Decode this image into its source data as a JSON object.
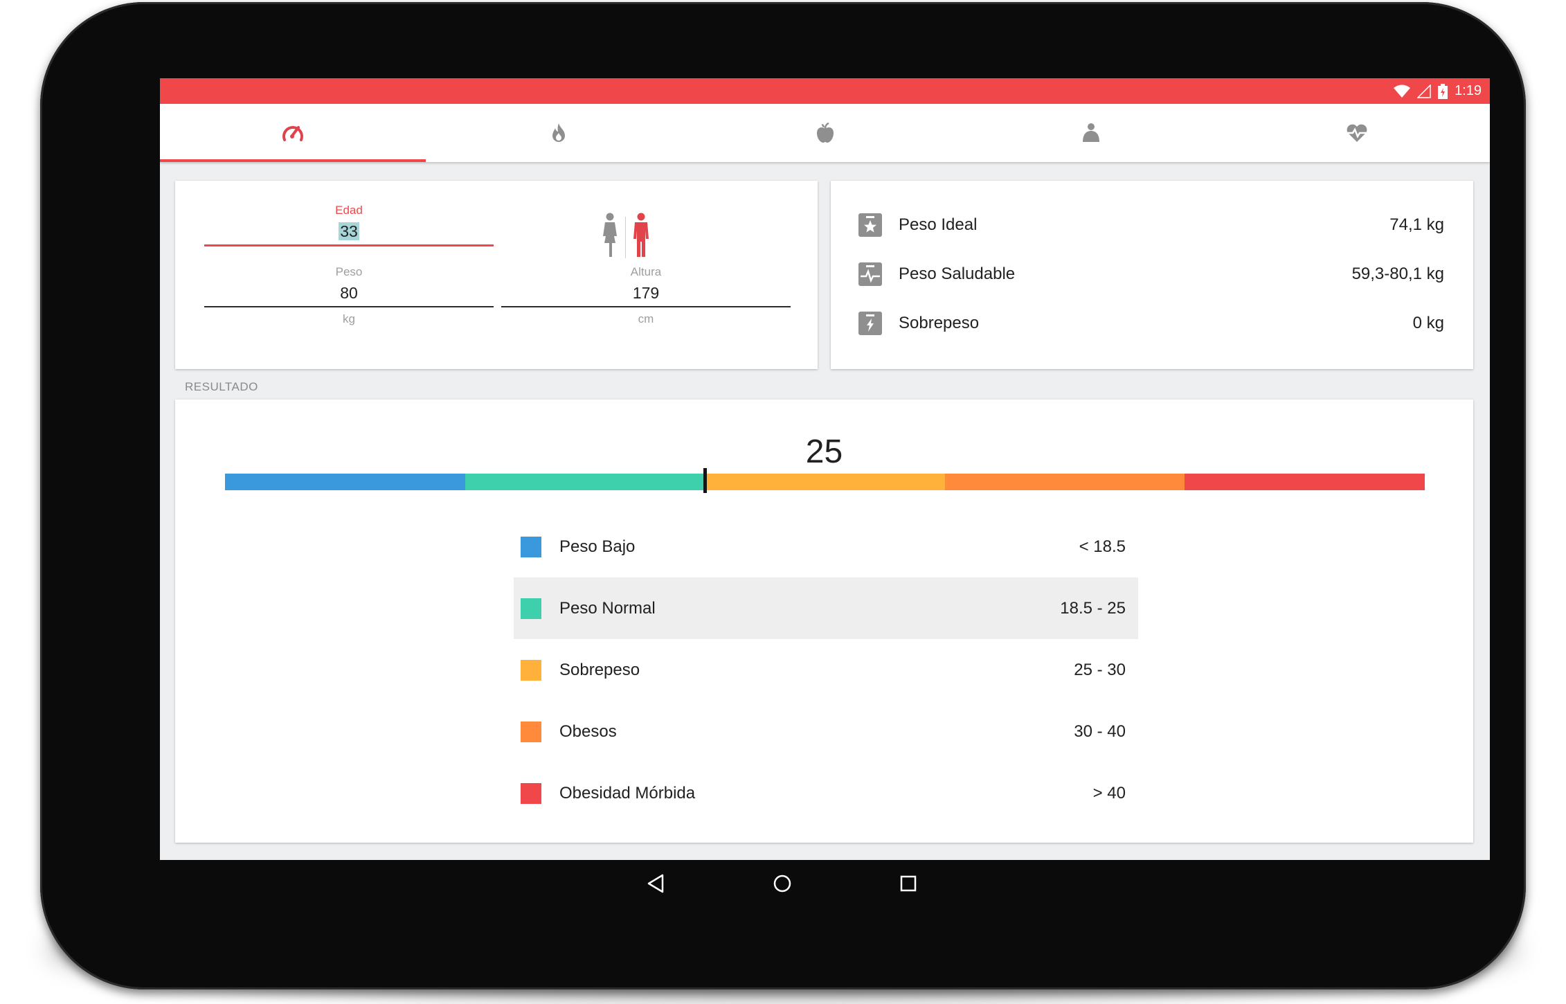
{
  "status_bar": {
    "time": "1:19",
    "bg_color": "#f0484a"
  },
  "tabs": [
    {
      "icon": "speedometer-icon",
      "active": true
    },
    {
      "icon": "flame-icon",
      "active": false
    },
    {
      "icon": "apple-icon",
      "active": false
    },
    {
      "icon": "body-icon",
      "active": false
    },
    {
      "icon": "heart-pulse-icon",
      "active": false
    }
  ],
  "inputs": {
    "age": {
      "label": "Edad",
      "value": "33"
    },
    "weight": {
      "label": "Peso",
      "value": "80",
      "unit": "kg"
    },
    "height": {
      "label": "Altura",
      "value": "179",
      "unit": "cm"
    }
  },
  "weights": [
    {
      "icon": "star-scale-icon",
      "name": "Peso Ideal",
      "value": "74,1 kg"
    },
    {
      "icon": "pulse-scale-icon",
      "name": "Peso Saludable",
      "value": "59,3-80,1 kg"
    },
    {
      "icon": "bolt-scale-icon",
      "name": "Sobrepeso",
      "value": "0 kg"
    }
  ],
  "result": {
    "section_label": "RESULTADO",
    "bmi": "25",
    "bmi_numeric": 25,
    "scale_segments": [
      {
        "from": 0,
        "color": "#3a98dc"
      },
      {
        "from": 18.5,
        "color": "#3ecfad"
      },
      {
        "from": 25,
        "color": "#ffb13b"
      },
      {
        "from": 30,
        "color": "#ff8a3b"
      },
      {
        "from": 40,
        "color": "#f0484a"
      }
    ],
    "categories": [
      {
        "name": "Peso Bajo",
        "range": "<  18.5",
        "color": "#3a98dc",
        "selected": false
      },
      {
        "name": "Peso Normal",
        "range": "18.5  -  25",
        "color": "#3ecfad",
        "selected": true
      },
      {
        "name": "Sobrepeso",
        "range": "25  -  30",
        "color": "#ffb13b",
        "selected": false
      },
      {
        "name": "Obesos",
        "range": "30  -  40",
        "color": "#ff8a3b",
        "selected": false
      },
      {
        "name": "Obesidad Mórbida",
        "range": ">  40",
        "color": "#f0484a",
        "selected": false
      }
    ]
  },
  "navigation": {
    "buttons": [
      "back-icon",
      "home-icon",
      "recents-icon"
    ]
  }
}
